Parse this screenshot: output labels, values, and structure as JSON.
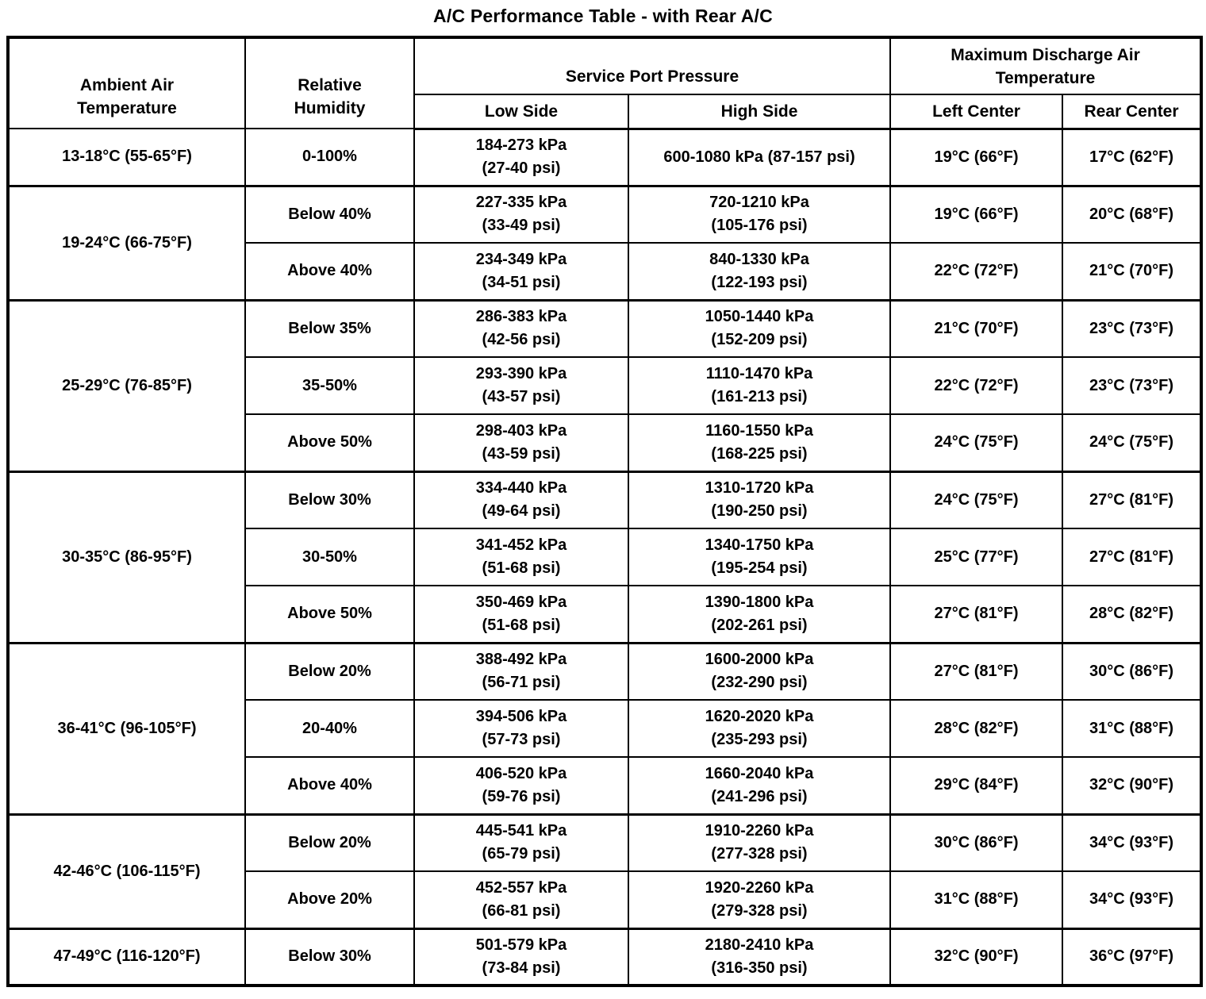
{
  "title": "A/C Performance Table - with Rear A/C",
  "table": {
    "headers": {
      "ambient": [
        "Ambient Air",
        "Temperature"
      ],
      "humidity": [
        "Relative",
        "Humidity"
      ],
      "service_port": "Service Port Pressure",
      "max_discharge": [
        "Maximum Discharge Air",
        "Temperature"
      ],
      "low_side": "Low Side",
      "high_side": "High Side",
      "left_center": "Left Center",
      "rear_center": "Rear Center"
    },
    "groups": [
      {
        "ambient": "13-18°C (55-65°F)",
        "rows": [
          {
            "humidity": "0-100%",
            "low": [
              "184-273 kPa",
              "(27-40 psi)"
            ],
            "high": [
              "600-1080 kPa (87-157 psi)"
            ],
            "left": "19°C (66°F)",
            "rear": "17°C (62°F)"
          }
        ]
      },
      {
        "ambient": "19-24°C (66-75°F)",
        "rows": [
          {
            "humidity": "Below 40%",
            "low": [
              "227-335 kPa",
              "(33-49 psi)"
            ],
            "high": [
              "720-1210 kPa",
              "(105-176 psi)"
            ],
            "left": "19°C (66°F)",
            "rear": "20°C (68°F)"
          },
          {
            "humidity": "Above 40%",
            "low": [
              "234-349 kPa",
              "(34-51 psi)"
            ],
            "high": [
              "840-1330 kPa",
              "(122-193 psi)"
            ],
            "left": "22°C (72°F)",
            "rear": "21°C (70°F)"
          }
        ]
      },
      {
        "ambient": "25-29°C (76-85°F)",
        "rows": [
          {
            "humidity": "Below 35%",
            "low": [
              "286-383 kPa",
              "(42-56 psi)"
            ],
            "high": [
              "1050-1440 kPa",
              "(152-209 psi)"
            ],
            "left": "21°C (70°F)",
            "rear": "23°C (73°F)"
          },
          {
            "humidity": "35-50%",
            "low": [
              "293-390 kPa",
              "(43-57 psi)"
            ],
            "high": [
              "1110-1470 kPa",
              "(161-213 psi)"
            ],
            "left": "22°C (72°F)",
            "rear": "23°C (73°F)"
          },
          {
            "humidity": "Above 50%",
            "low": [
              "298-403 kPa",
              "(43-59 psi)"
            ],
            "high": [
              "1160-1550 kPa",
              "(168-225 psi)"
            ],
            "left": "24°C (75°F)",
            "rear": "24°C (75°F)"
          }
        ]
      },
      {
        "ambient": "30-35°C (86-95°F)",
        "rows": [
          {
            "humidity": "Below 30%",
            "low": [
              "334-440 kPa",
              "(49-64 psi)"
            ],
            "high": [
              "1310-1720 kPa",
              "(190-250 psi)"
            ],
            "left": "24°C (75°F)",
            "rear": "27°C (81°F)"
          },
          {
            "humidity": "30-50%",
            "low": [
              "341-452 kPa",
              "(51-68 psi)"
            ],
            "high": [
              "1340-1750 kPa",
              "(195-254 psi)"
            ],
            "left": "25°C (77°F)",
            "rear": "27°C (81°F)"
          },
          {
            "humidity": "Above 50%",
            "low": [
              "350-469 kPa",
              "(51-68 psi)"
            ],
            "high": [
              "1390-1800 kPa",
              "(202-261 psi)"
            ],
            "left": "27°C (81°F)",
            "rear": "28°C (82°F)"
          }
        ]
      },
      {
        "ambient": "36-41°C (96-105°F)",
        "rows": [
          {
            "humidity": "Below 20%",
            "low": [
              "388-492 kPa",
              "(56-71 psi)"
            ],
            "high": [
              "1600-2000 kPa",
              "(232-290 psi)"
            ],
            "left": "27°C (81°F)",
            "rear": "30°C (86°F)"
          },
          {
            "humidity": "20-40%",
            "low": [
              "394-506 kPa",
              "(57-73 psi)"
            ],
            "high": [
              "1620-2020 kPa",
              "(235-293 psi)"
            ],
            "left": "28°C (82°F)",
            "rear": "31°C (88°F)"
          },
          {
            "humidity": "Above 40%",
            "low": [
              "406-520 kPa",
              "(59-76 psi)"
            ],
            "high": [
              "1660-2040 kPa",
              "(241-296 psi)"
            ],
            "left": "29°C (84°F)",
            "rear": "32°C (90°F)"
          }
        ]
      },
      {
        "ambient": "42-46°C (106-115°F)",
        "rows": [
          {
            "humidity": "Below 20%",
            "low": [
              "445-541 kPa",
              "(65-79 psi)"
            ],
            "high": [
              "1910-2260 kPa",
              "(277-328 psi)"
            ],
            "left": "30°C (86°F)",
            "rear": "34°C (93°F)"
          },
          {
            "humidity": "Above 20%",
            "low": [
              "452-557 kPa",
              "(66-81 psi)"
            ],
            "high": [
              "1920-2260 kPa",
              "(279-328 psi)"
            ],
            "left": "31°C (88°F)",
            "rear": "34°C (93°F)"
          }
        ]
      },
      {
        "ambient": "47-49°C (116-120°F)",
        "rows": [
          {
            "humidity": "Below 30%",
            "low": [
              "501-579 kPa",
              "(73-84 psi)"
            ],
            "high": [
              "2180-2410 kPa",
              "(316-350 psi)"
            ],
            "left": "32°C (90°F)",
            "rear": "36°C (97°F)"
          }
        ]
      }
    ]
  }
}
